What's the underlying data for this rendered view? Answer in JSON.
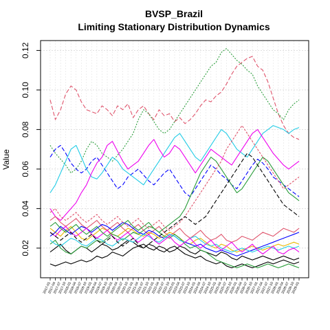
{
  "chart_data": {
    "type": "line",
    "title": "BVSP_Brazil",
    "subtitle": "Limiting Stationary Distribution Dynamics",
    "xlabel": "",
    "ylabel": "Value",
    "ylim": [
      0.005,
      0.125
    ],
    "yticks": [
      0.02,
      0.04,
      0.06,
      0.08,
      0.1,
      0.12
    ],
    "grid": true,
    "legend": "none",
    "x_tick_labels": [
      "2017-01",
      "2017-04",
      "2017-07",
      "2017-10",
      "2018-01",
      "2018-04",
      "2018-07",
      "2018-10",
      "2019-01",
      "2019-04",
      "2019-07",
      "2019-10",
      "2020-01",
      "2020-04",
      "2020-07",
      "2020-10",
      "2021-01",
      "2021-04",
      "2021-07",
      "2021-10",
      "2022-01",
      "2022-04",
      "2022-07",
      "2022-10",
      "2023-01",
      "2023-04",
      "2023-07",
      "2023-10",
      "2024-01",
      "2024-04",
      "2024-07",
      "2024-10",
      "2025-01",
      "2025-04",
      "2025-07",
      "2025-10",
      "2026-01",
      "2026-04",
      "2026-07",
      "2026-10",
      "2027-01",
      "2027-04",
      "2027-07",
      "2027-10",
      "2028-01",
      "2028-04",
      "2028-07",
      "2028-10",
      "2029-01"
    ],
    "series": [
      {
        "color": "#DF536B",
        "dash": "6,3",
        "values": [
          0.095,
          0.085,
          0.09,
          0.098,
          0.102,
          0.1,
          0.094,
          0.09,
          0.089,
          0.088,
          0.092,
          0.09,
          0.087,
          0.092,
          0.09,
          0.093,
          0.086,
          0.09,
          0.092,
          0.088,
          0.085,
          0.09,
          0.087,
          0.088,
          0.084,
          0.086,
          0.083,
          0.085,
          0.088,
          0.092,
          0.095,
          0.094,
          0.097,
          0.099,
          0.103,
          0.108,
          0.112,
          0.114,
          0.116,
          0.117,
          0.112,
          0.11,
          0.104,
          0.096,
          0.088,
          0.082,
          0.078,
          0.076,
          0.075
        ]
      },
      {
        "color": "#2A9D3A",
        "dash": "2,2",
        "values": [
          0.072,
          0.068,
          0.065,
          0.062,
          0.058,
          0.06,
          0.064,
          0.07,
          0.074,
          0.072,
          0.068,
          0.066,
          0.064,
          0.067,
          0.07,
          0.074,
          0.078,
          0.085,
          0.09,
          0.088,
          0.084,
          0.08,
          0.078,
          0.08,
          0.084,
          0.088,
          0.092,
          0.096,
          0.1,
          0.104,
          0.108,
          0.112,
          0.114,
          0.119,
          0.121,
          0.118,
          0.115,
          0.113,
          0.11,
          0.108,
          0.102,
          0.098,
          0.094,
          0.09,
          0.088,
          0.085,
          0.09,
          0.093,
          0.095
        ]
      },
      {
        "color": "#0000FF",
        "dash": "6,3",
        "values": [
          0.066,
          0.07,
          0.072,
          0.068,
          0.063,
          0.06,
          0.058,
          0.06,
          0.064,
          0.066,
          0.062,
          0.058,
          0.054,
          0.05,
          0.052,
          0.056,
          0.058,
          0.06,
          0.057,
          0.054,
          0.052,
          0.055,
          0.058,
          0.06,
          0.056,
          0.052,
          0.048,
          0.046,
          0.05,
          0.054,
          0.058,
          0.062,
          0.06,
          0.057,
          0.055,
          0.052,
          0.05,
          0.054,
          0.058,
          0.062,
          0.065,
          0.063,
          0.06,
          0.056,
          0.054,
          0.052,
          0.05,
          0.048,
          0.046
        ]
      },
      {
        "color": "#22CCE6",
        "dash": "",
        "values": [
          0.048,
          0.052,
          0.058,
          0.064,
          0.07,
          0.072,
          0.066,
          0.06,
          0.056,
          0.055,
          0.058,
          0.062,
          0.066,
          0.064,
          0.06,
          0.058,
          0.056,
          0.054,
          0.052,
          0.056,
          0.06,
          0.064,
          0.068,
          0.072,
          0.076,
          0.078,
          0.074,
          0.07,
          0.066,
          0.064,
          0.068,
          0.072,
          0.076,
          0.08,
          0.078,
          0.074,
          0.07,
          0.068,
          0.066,
          0.07,
          0.074,
          0.078,
          0.08,
          0.082,
          0.081,
          0.08,
          0.078,
          0.08,
          0.081
        ]
      },
      {
        "color": "#EE00EE",
        "dash": "",
        "values": [
          0.04,
          0.036,
          0.034,
          0.037,
          0.04,
          0.043,
          0.048,
          0.052,
          0.058,
          0.063,
          0.066,
          0.072,
          0.074,
          0.069,
          0.064,
          0.06,
          0.062,
          0.064,
          0.068,
          0.072,
          0.075,
          0.07,
          0.066,
          0.068,
          0.072,
          0.07,
          0.066,
          0.062,
          0.058,
          0.062,
          0.066,
          0.07,
          0.068,
          0.066,
          0.064,
          0.062,
          0.066,
          0.07,
          0.074,
          0.078,
          0.08,
          0.076,
          0.072,
          0.068,
          0.065,
          0.062,
          0.06,
          0.062,
          0.064
        ]
      },
      {
        "color": "#E8B800",
        "dash": "",
        "values": [
          0.03,
          0.028,
          0.026,
          0.029,
          0.031,
          0.028,
          0.025,
          0.024,
          0.026,
          0.028,
          0.03,
          0.029,
          0.027,
          0.026,
          0.028,
          0.03,
          0.029,
          0.027,
          0.026,
          0.028,
          0.027,
          0.025,
          0.026,
          0.028,
          0.027,
          0.025,
          0.023,
          0.022,
          0.024,
          0.025,
          0.023,
          0.021,
          0.02,
          0.022,
          0.021,
          0.019,
          0.018,
          0.019,
          0.02,
          0.021,
          0.02,
          0.019,
          0.02,
          0.021,
          0.022,
          0.021,
          0.022,
          0.023,
          0.022
        ]
      },
      {
        "color": "#000000",
        "dash": "",
        "values": [
          0.018,
          0.02,
          0.022,
          0.019,
          0.017,
          0.019,
          0.021,
          0.02,
          0.018,
          0.02,
          0.022,
          0.021,
          0.019,
          0.02,
          0.022,
          0.024,
          0.023,
          0.021,
          0.022,
          0.02,
          0.019,
          0.021,
          0.02,
          0.018,
          0.019,
          0.021,
          0.02,
          0.018,
          0.017,
          0.019,
          0.018,
          0.017,
          0.016,
          0.018,
          0.017,
          0.015,
          0.014,
          0.016,
          0.015,
          0.014,
          0.015,
          0.016,
          0.015,
          0.014,
          0.015,
          0.016,
          0.015,
          0.014,
          0.015
        ]
      },
      {
        "color": "#000000",
        "dash": "",
        "values": [
          0.012,
          0.011,
          0.012,
          0.013,
          0.012,
          0.013,
          0.014,
          0.013,
          0.014,
          0.016,
          0.015,
          0.016,
          0.018,
          0.017,
          0.016,
          0.018,
          0.02,
          0.021,
          0.02,
          0.022,
          0.021,
          0.019,
          0.018,
          0.02,
          0.021,
          0.019,
          0.017,
          0.016,
          0.015,
          0.016,
          0.014,
          0.013,
          0.012,
          0.013,
          0.011,
          0.01,
          0.011,
          0.012,
          0.011,
          0.01,
          0.011,
          0.012,
          0.013,
          0.012,
          0.013,
          0.014,
          0.013,
          0.012,
          0.013
        ]
      },
      {
        "color": "#2A9D3A",
        "dash": "",
        "values": [
          0.022,
          0.024,
          0.02,
          0.018,
          0.017,
          0.019,
          0.021,
          0.02,
          0.022,
          0.024,
          0.023,
          0.025,
          0.027,
          0.026,
          0.024,
          0.026,
          0.028,
          0.027,
          0.029,
          0.031,
          0.03,
          0.028,
          0.026,
          0.025,
          0.027,
          0.025,
          0.022,
          0.02,
          0.021,
          0.019,
          0.018,
          0.016,
          0.014,
          0.013,
          0.012,
          0.011,
          0.01,
          0.011,
          0.012,
          0.011,
          0.01,
          0.011,
          0.012,
          0.011,
          0.01,
          0.011,
          0.012,
          0.011,
          0.01
        ]
      },
      {
        "color": "#DF536B",
        "dash": "",
        "values": [
          0.034,
          0.036,
          0.033,
          0.031,
          0.033,
          0.035,
          0.032,
          0.03,
          0.032,
          0.034,
          0.031,
          0.029,
          0.031,
          0.033,
          0.03,
          0.028,
          0.03,
          0.032,
          0.029,
          0.027,
          0.029,
          0.031,
          0.028,
          0.026,
          0.028,
          0.03,
          0.027,
          0.025,
          0.027,
          0.029,
          0.026,
          0.024,
          0.025,
          0.027,
          0.024,
          0.023,
          0.024,
          0.026,
          0.025,
          0.024,
          0.026,
          0.028,
          0.027,
          0.026,
          0.028,
          0.03,
          0.029,
          0.028,
          0.03
        ]
      },
      {
        "color": "#0000FF",
        "dash": "",
        "values": [
          0.026,
          0.028,
          0.031,
          0.029,
          0.027,
          0.029,
          0.031,
          0.03,
          0.028,
          0.03,
          0.032,
          0.031,
          0.029,
          0.031,
          0.033,
          0.032,
          0.03,
          0.028,
          0.027,
          0.029,
          0.028,
          0.026,
          0.025,
          0.027,
          0.026,
          0.024,
          0.023,
          0.022,
          0.021,
          0.022,
          0.02,
          0.019,
          0.018,
          0.019,
          0.018,
          0.017,
          0.016,
          0.017,
          0.018,
          0.019,
          0.02,
          0.021,
          0.022,
          0.023,
          0.024,
          0.025,
          0.026,
          0.027,
          0.028
        ]
      },
      {
        "color": "#22CCE6",
        "dash": "",
        "values": [
          0.024,
          0.022,
          0.021,
          0.023,
          0.025,
          0.024,
          0.022,
          0.021,
          0.023,
          0.025,
          0.024,
          0.022,
          0.021,
          0.023,
          0.025,
          0.024,
          0.023,
          0.025,
          0.027,
          0.026,
          0.024,
          0.023,
          0.025,
          0.027,
          0.026,
          0.024,
          0.023,
          0.025,
          0.026,
          0.024,
          0.022,
          0.021,
          0.022,
          0.02,
          0.019,
          0.018,
          0.019,
          0.02,
          0.019,
          0.018,
          0.019,
          0.02,
          0.021,
          0.02,
          0.019,
          0.02,
          0.021,
          0.02,
          0.021
        ]
      },
      {
        "color": "#EE00EE",
        "dash": "",
        "values": [
          0.028,
          0.026,
          0.029,
          0.031,
          0.028,
          0.026,
          0.028,
          0.03,
          0.027,
          0.025,
          0.027,
          0.029,
          0.026,
          0.024,
          0.026,
          0.028,
          0.025,
          0.023,
          0.025,
          0.027,
          0.024,
          0.022,
          0.024,
          0.026,
          0.023,
          0.021,
          0.023,
          0.025,
          0.022,
          0.02,
          0.022,
          0.024,
          0.021,
          0.019,
          0.021,
          0.023,
          0.02,
          0.018,
          0.02,
          0.022,
          0.019,
          0.017,
          0.019,
          0.021,
          0.018,
          0.017,
          0.019,
          0.02,
          0.018
        ]
      },
      {
        "color": "#2A9D3A",
        "dash": "",
        "values": [
          0.031,
          0.033,
          0.03,
          0.028,
          0.03,
          0.032,
          0.029,
          0.027,
          0.029,
          0.031,
          0.028,
          0.026,
          0.028,
          0.03,
          0.032,
          0.034,
          0.031,
          0.029,
          0.031,
          0.033,
          0.03,
          0.028,
          0.03,
          0.032,
          0.034,
          0.036,
          0.04,
          0.046,
          0.052,
          0.058,
          0.062,
          0.066,
          0.064,
          0.06,
          0.056,
          0.052,
          0.048,
          0.05,
          0.054,
          0.058,
          0.062,
          0.066,
          0.064,
          0.06,
          0.056,
          0.052,
          0.048,
          0.046,
          0.044
        ]
      },
      {
        "color": "#DF536B",
        "dash": "3,2",
        "values": [
          0.038,
          0.04,
          0.036,
          0.034,
          0.036,
          0.038,
          0.035,
          0.033,
          0.035,
          0.037,
          0.034,
          0.032,
          0.034,
          0.036,
          0.033,
          0.031,
          0.033,
          0.035,
          0.032,
          0.03,
          0.032,
          0.034,
          0.031,
          0.029,
          0.031,
          0.033,
          0.036,
          0.04,
          0.044,
          0.048,
          0.052,
          0.056,
          0.06,
          0.064,
          0.07,
          0.074,
          0.078,
          0.082,
          0.078,
          0.074,
          0.07,
          0.066,
          0.062,
          0.058,
          0.054,
          0.05,
          0.052,
          0.054,
          0.056
        ]
      },
      {
        "color": "#000000",
        "dash": "6,3",
        "values": [
          0.028,
          0.026,
          0.024,
          0.026,
          0.028,
          0.025,
          0.023,
          0.025,
          0.027,
          0.024,
          0.022,
          0.024,
          0.026,
          0.023,
          0.021,
          0.023,
          0.025,
          0.022,
          0.02,
          0.022,
          0.024,
          0.026,
          0.028,
          0.03,
          0.032,
          0.034,
          0.036,
          0.034,
          0.032,
          0.034,
          0.036,
          0.04,
          0.044,
          0.048,
          0.052,
          0.056,
          0.06,
          0.064,
          0.068,
          0.066,
          0.062,
          0.058,
          0.054,
          0.05,
          0.046,
          0.042,
          0.04,
          0.038,
          0.036
        ]
      }
    ]
  }
}
